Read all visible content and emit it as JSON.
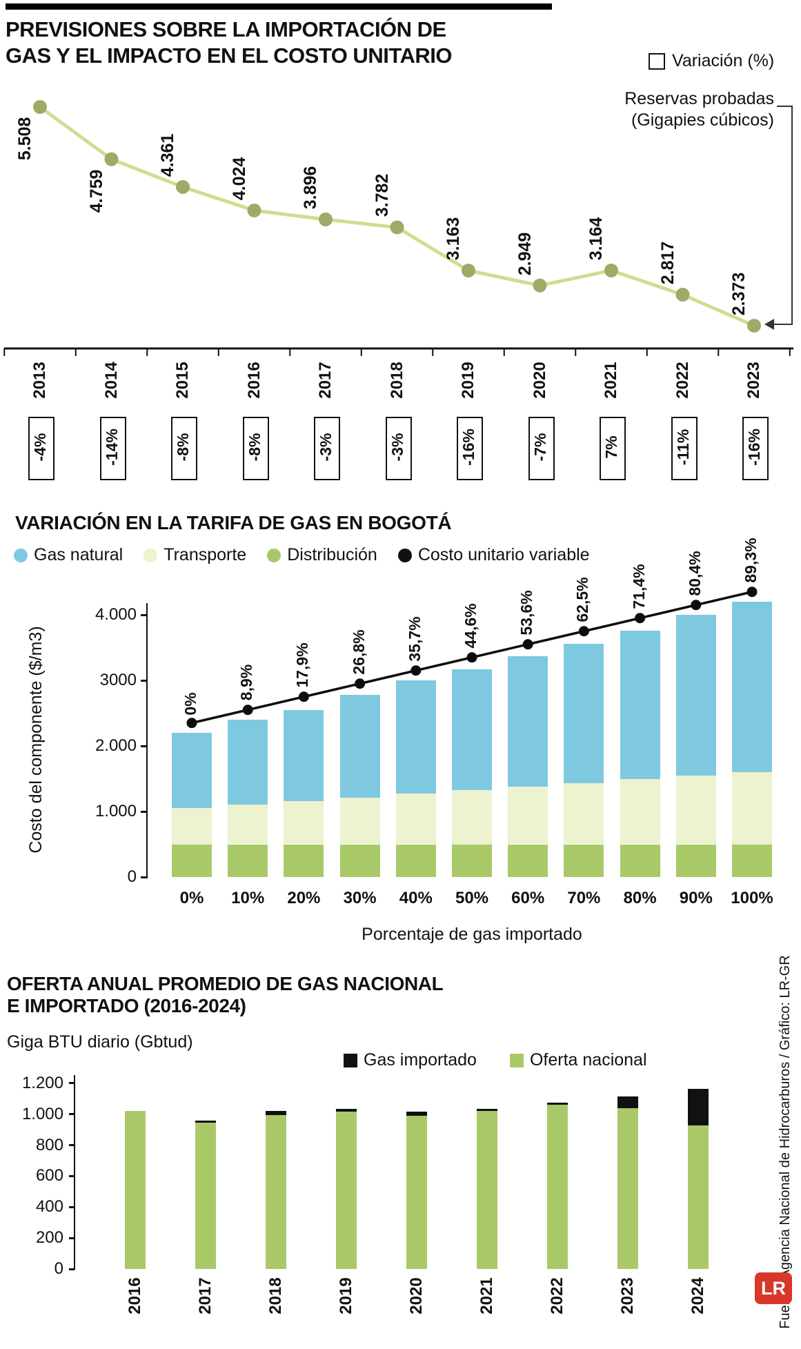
{
  "page": {
    "title_line1": "PREVISIONES SOBRE LA IMPORTACIÓN DE",
    "title_line2": "GAS Y EL IMPACTO EN EL COSTO UNITARIO"
  },
  "colors": {
    "line_green": "#cdde8f",
    "dot_green": "#9dab66",
    "blue": "#7fc9e0",
    "cream": "#edf2cf",
    "green": "#a9c968",
    "black": "#111111",
    "logo_red": "#d8372a"
  },
  "section1": {
    "legend_variation": "Variación (%)",
    "reserves_label_line1": "Reservas probadas",
    "reserves_label_line2": "(Gigapies cúbicos)"
  },
  "section2": {
    "title": "VARIACIÓN EN LA TARIFA DE GAS EN BOGOTÁ",
    "ylabel": "Costo del componente ($/m3)",
    "xlabel": "Porcentaje de gas importado",
    "legend": [
      {
        "label": "Gas natural",
        "color": "#7fc9e0"
      },
      {
        "label": "Transporte",
        "color": "#edf2cf"
      },
      {
        "label": "Distribución",
        "color": "#a9c968"
      },
      {
        "label": "Costo unitario variable",
        "color": "#111111"
      }
    ]
  },
  "section3": {
    "title_line1": "OFERTA ANUAL PROMEDIO DE GAS NACIONAL",
    "title_line2": "E IMPORTADO (2016-2024)",
    "unit": "Giga BTU diario (Gbtud)",
    "legend": [
      {
        "label": "Gas importado",
        "color": "#111111"
      },
      {
        "label": "Oferta nacional",
        "color": "#a9c968"
      }
    ]
  },
  "footer": {
    "source": "Fuente: Agencia Nacional de Hidrocarburos / Gráfico: LR-GR",
    "logo": "LR"
  },
  "chart_data": [
    {
      "type": "line",
      "title": "Previsiones sobre la importación de gas y el impacto en el costo unitario",
      "series_name": "Reservas probadas (Gigapies cúbicos)",
      "categories": [
        "2013",
        "2014",
        "2015",
        "2016",
        "2017",
        "2018",
        "2019",
        "2020",
        "2021",
        "2022",
        "2023"
      ],
      "values": [
        5508,
        4759,
        4361,
        4024,
        3896,
        3782,
        3163,
        2949,
        3164,
        2817,
        2373
      ],
      "value_labels": [
        "5.508",
        "4.759",
        "4.361",
        "4.024",
        "3.896",
        "3.782",
        "3.163",
        "2.949",
        "3.164",
        "2.817",
        "2.373"
      ],
      "variation_pct": [
        "-4%",
        "-14%",
        "-8%",
        "-8%",
        "-3%",
        "-3%",
        "-16%",
        "-7%",
        "7%",
        "-11%",
        "-16%"
      ],
      "legend": [
        "Variación (%)"
      ]
    },
    {
      "type": "bar",
      "subtype": "stacked-with-line",
      "title": "Variación en la tarifa de gas en Bogotá",
      "categories": [
        "0%",
        "10%",
        "20%",
        "30%",
        "40%",
        "50%",
        "60%",
        "70%",
        "80%",
        "90%",
        "100%"
      ],
      "xlabel": "Porcentaje de gas importado",
      "ylabel": "Costo del componente ($/m3)",
      "ylim": [
        0,
        4600
      ],
      "yticks": [
        0,
        1000,
        2000,
        3000,
        4000
      ],
      "ytick_labels": [
        "0",
        "1.000",
        "2.000",
        "3000",
        "4.000"
      ],
      "series": [
        {
          "name": "Distribución",
          "color": "#a9c968",
          "values": [
            500,
            500,
            500,
            500,
            500,
            500,
            500,
            500,
            500,
            500,
            500
          ]
        },
        {
          "name": "Transporte",
          "color": "#edf2cf",
          "values": [
            550,
            605,
            660,
            715,
            770,
            825,
            880,
            935,
            990,
            1045,
            1100
          ]
        },
        {
          "name": "Gas natural",
          "color": "#7fc9e0",
          "values": [
            1150,
            1295,
            1390,
            1565,
            1730,
            1845,
            1990,
            2125,
            2270,
            2455,
            2600
          ]
        }
      ],
      "line_series": {
        "name": "Costo unitario variable",
        "values": [
          2350,
          2550,
          2750,
          2950,
          3150,
          3350,
          3550,
          3750,
          3950,
          4150,
          4350
        ],
        "labels": [
          "0%",
          "8,9%",
          "17,9%",
          "26,8%",
          "35,7%",
          "44,6%",
          "53,6%",
          "62,5%",
          "71,4%",
          "80,4%",
          "89,3%"
        ]
      }
    },
    {
      "type": "bar",
      "subtype": "stacked",
      "title": "Oferta anual promedio de gas nacional e importado (2016-2024)",
      "ylabel": "Giga BTU diario (Gbtud)",
      "categories": [
        "2016",
        "2017",
        "2018",
        "2019",
        "2020",
        "2021",
        "2022",
        "2023",
        "2024"
      ],
      "ylim": [
        0,
        1250
      ],
      "yticks": [
        0,
        200,
        400,
        600,
        800,
        1000,
        1200
      ],
      "ytick_labels": [
        "0",
        "200",
        "400",
        "600",
        "800",
        "1.000",
        "1.200"
      ],
      "series": [
        {
          "name": "Oferta nacional",
          "color": "#a9c968",
          "values": [
            1020,
            945,
            995,
            1015,
            990,
            1020,
            1060,
            1040,
            930
          ]
        },
        {
          "name": "Gas importado",
          "color": "#111111",
          "values": [
            0,
            15,
            25,
            20,
            25,
            15,
            15,
            75,
            235
          ]
        }
      ]
    }
  ]
}
